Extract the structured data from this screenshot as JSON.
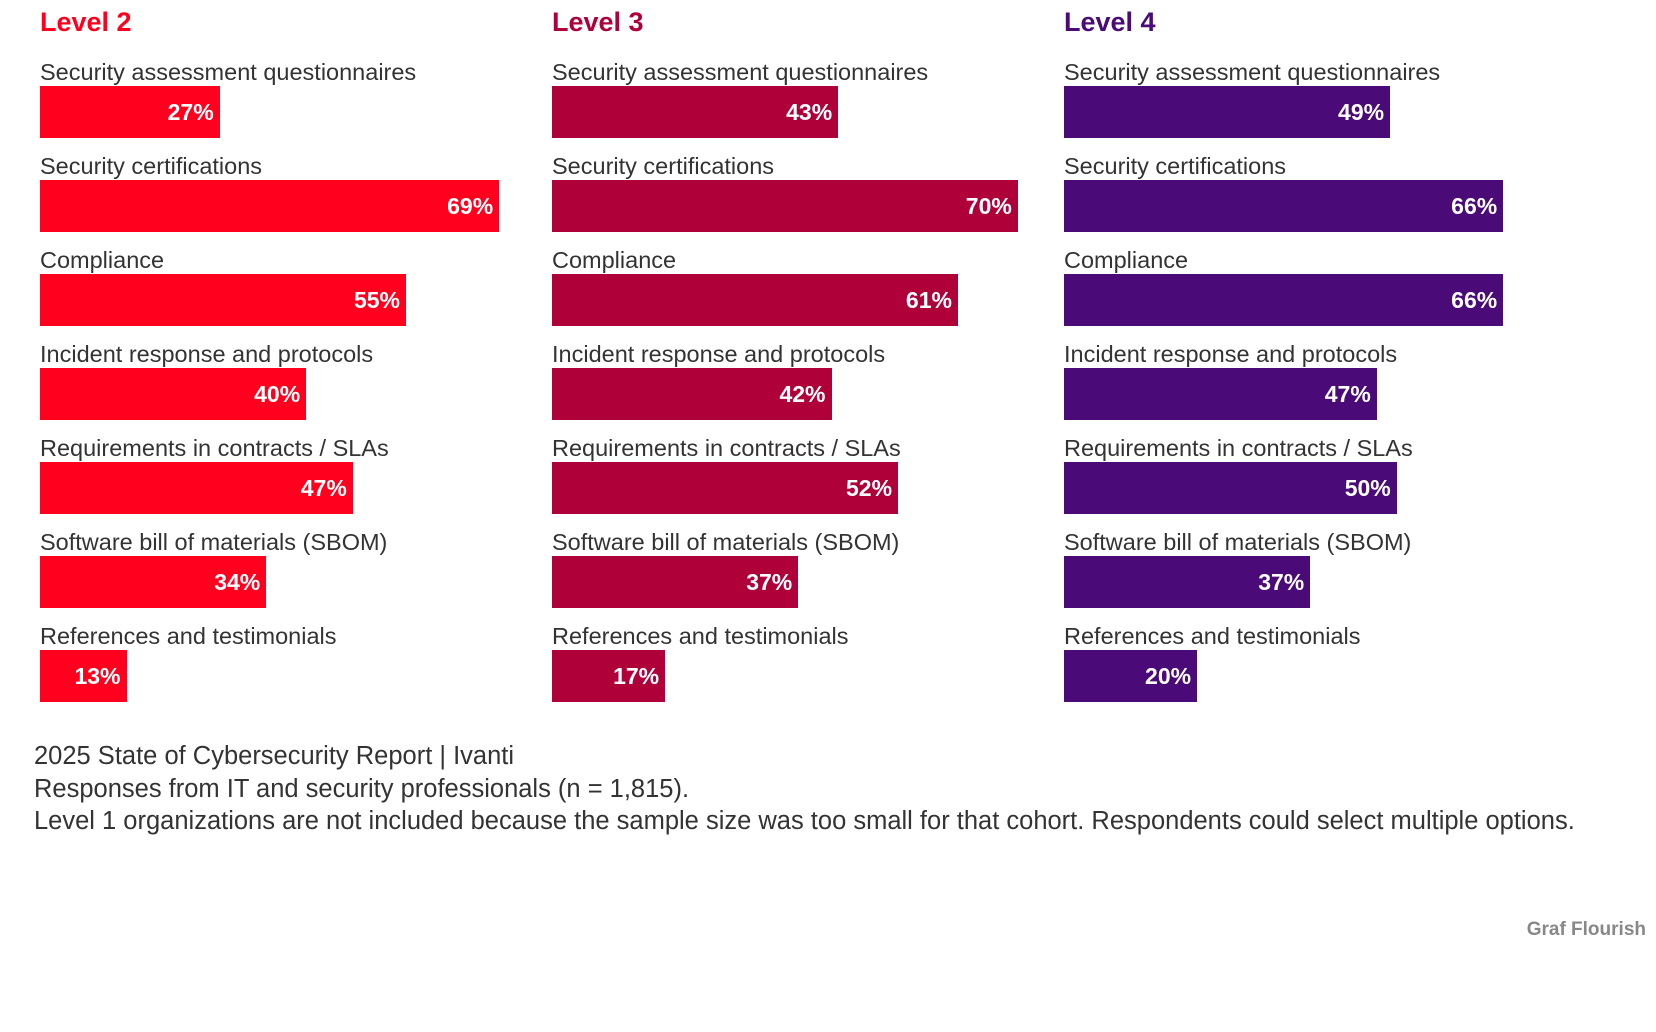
{
  "chart_data": {
    "type": "bar",
    "orientation": "horizontal",
    "categories": [
      "Security assessment questionnaires",
      "Security certifications",
      "Compliance",
      "Incident response and protocols",
      "Requirements in contracts / SLAs",
      "Software bill of materials (SBOM)",
      "References and testimonials"
    ],
    "series": [
      {
        "name": "Level 2",
        "color": "#ff001e",
        "values": [
          27,
          69,
          55,
          40,
          47,
          34,
          13
        ],
        "labels": [
          "27%",
          "69%",
          "55%",
          "40%",
          "47%",
          "34%",
          "13%"
        ]
      },
      {
        "name": "Level 3",
        "color": "#b0003a",
        "values": [
          43,
          70,
          61,
          42,
          52,
          37,
          17
        ],
        "labels": [
          "43%",
          "70%",
          "61%",
          "42%",
          "52%",
          "37%",
          "17%"
        ]
      },
      {
        "name": "Level 4",
        "color": "#4a0a78",
        "values": [
          49,
          66,
          66,
          47,
          50,
          37,
          20
        ],
        "labels": [
          "49%",
          "66%",
          "66%",
          "47%",
          "50%",
          "37%",
          "20%"
        ]
      }
    ],
    "unit": "%",
    "xlim": [
      0,
      75
    ],
    "grid": false,
    "layout": "small-multiples"
  },
  "footer": {
    "source": "2025 State of Cybersecurity Report | Ivanti",
    "sample": "Responses from IT and security professionals (n = 1,815).",
    "note": "Level 1 organizations are not included because the sample size was too small for that cohort. Respondents could select multiple options."
  },
  "credit": "Graf Flourish"
}
